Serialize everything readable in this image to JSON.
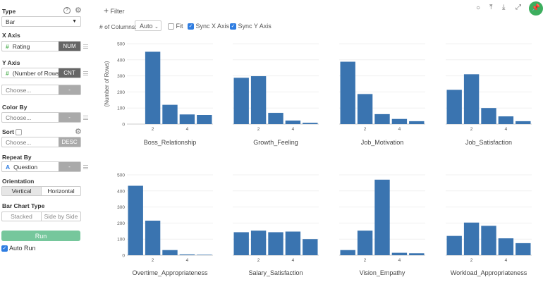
{
  "sidebar": {
    "type_label": "Type",
    "type_value": "Bar",
    "x_axis_label": "X Axis",
    "x_field": "Rating",
    "x_tag": "NUM",
    "y_axis_label": "Y Axis",
    "y_field": "(Number of Rows)",
    "y_tag": "CNT",
    "y2_placeholder": "Choose...",
    "y2_tag": "-",
    "color_label": "Color By",
    "color_placeholder": "Choose...",
    "color_tag": "-",
    "sort_label": "Sort",
    "sort_placeholder": "Choose...",
    "sort_tag": "DESC",
    "repeat_label": "Repeat By",
    "repeat_field": "Question",
    "repeat_tag": "-",
    "orientation_label": "Orientation",
    "orientation_options": [
      "Vertical",
      "Horizontal"
    ],
    "bar_type_label": "Bar Chart Type",
    "bar_type_options": [
      "Stacked",
      "Side by Side"
    ],
    "run_label": "Run",
    "auto_run_label": "Auto Run"
  },
  "toolbar": {
    "filter_label": "Filter",
    "columns_label": "# of Columns:",
    "columns_value": "Auto",
    "fit_label": "Fit",
    "sync_x_label": "Sync X Axis",
    "sync_y_label": "Sync Y Axis",
    "icons": [
      "comment-icon",
      "upload-icon",
      "download-icon",
      "expand-icon",
      "pin-icon"
    ],
    "pin_color": "#3dae5e"
  },
  "chart_data": {
    "type": "bar",
    "ylabel": "(Number of Rows)",
    "ylim": [
      0,
      500
    ],
    "yticks": [
      0,
      100,
      200,
      300,
      400,
      500
    ],
    "x": [
      1,
      2,
      3,
      4,
      5
    ],
    "xticks": [
      2,
      4
    ],
    "bar_color": "#3a74b0",
    "grid": true,
    "panels": [
      {
        "title": "Boss_Relationship",
        "values": [
          null,
          450,
          120,
          60,
          57
        ]
      },
      {
        "title": "Growth_Feeling",
        "values": [
          288,
          298,
          70,
          22,
          8
        ]
      },
      {
        "title": "Job_Motivation",
        "values": [
          388,
          187,
          62,
          32,
          18
        ]
      },
      {
        "title": "Job_Satisfaction",
        "values": [
          213,
          310,
          100,
          48,
          18
        ]
      },
      {
        "title": "Overtime_Appropriateness",
        "values": [
          432,
          215,
          32,
          5,
          3
        ]
      },
      {
        "title": "Salary_Satisfaction",
        "values": [
          143,
          153,
          143,
          147,
          100
        ]
      },
      {
        "title": "Vision_Empathy",
        "values": [
          32,
          153,
          470,
          15,
          12
        ]
      },
      {
        "title": "Workload_Appropriateness",
        "values": [
          120,
          203,
          183,
          105,
          75
        ]
      }
    ]
  }
}
